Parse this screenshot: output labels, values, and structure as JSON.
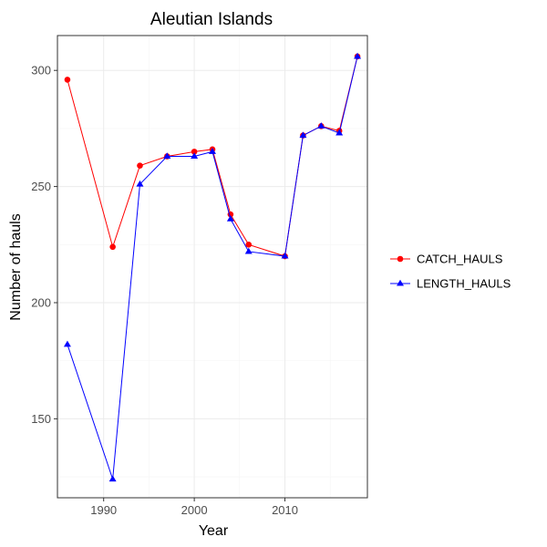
{
  "chart_data": {
    "type": "line",
    "title": "Aleutian Islands",
    "xlabel": "Year",
    "ylabel": "Number of hauls",
    "xlim": [
      1984.9,
      2019.1
    ],
    "ylim": [
      116,
      315
    ],
    "x_ticks": [
      1990,
      2000,
      2010
    ],
    "y_ticks": [
      150,
      200,
      250,
      300
    ],
    "grid": true,
    "legend_position": "right",
    "x": [
      1986,
      1991,
      1994,
      1997,
      2000,
      2002,
      2004,
      2006,
      2010,
      2012,
      2014,
      2016,
      2018
    ],
    "series": [
      {
        "name": "CATCH_HAULS",
        "color": "#ff0000",
        "marker": "circle",
        "values": [
          296,
          224,
          259,
          263,
          265,
          266,
          238,
          225,
          220,
          272,
          276,
          274,
          306
        ]
      },
      {
        "name": "LENGTH_HAULS",
        "color": "#0000ff",
        "marker": "triangle",
        "values": [
          182,
          124,
          251,
          263,
          263,
          265,
          236,
          222,
          220,
          272,
          276,
          273,
          306
        ]
      }
    ]
  }
}
